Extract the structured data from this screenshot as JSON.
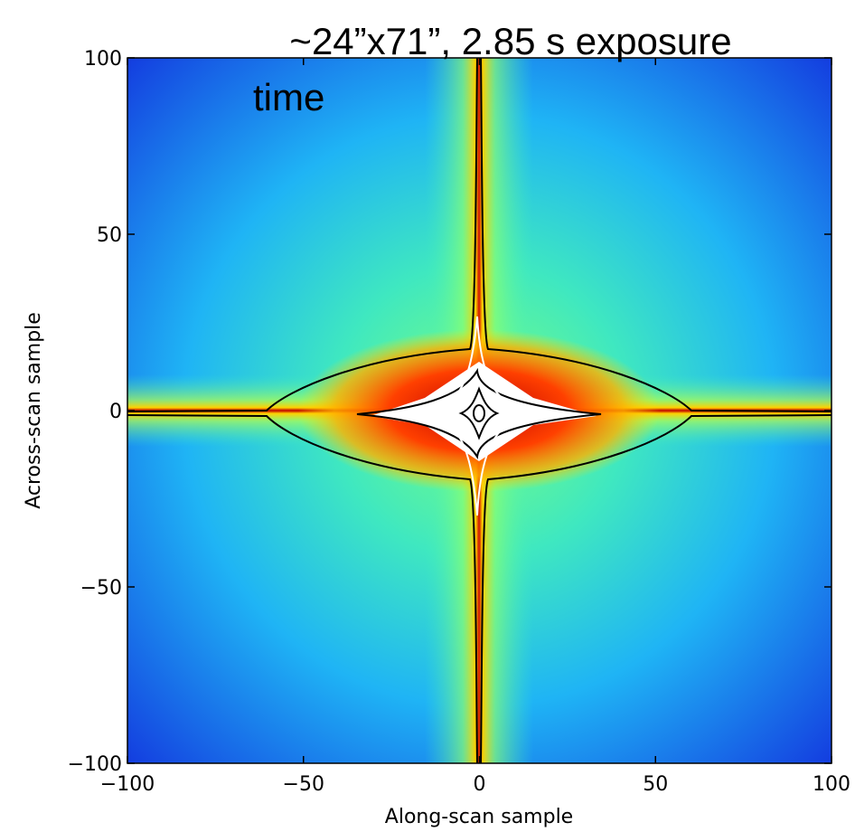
{
  "chart_data": {
    "type": "heatmap",
    "title": "~24”x71”, 2.85 s exposure",
    "annotation": "time",
    "x_label": "Along-scan sample",
    "y_label": "Across-scan sample",
    "xlim": [
      -100,
      100
    ],
    "ylim": [
      -100,
      100
    ],
    "xticks": [
      {
        "value": -100,
        "label": "−100"
      },
      {
        "value": -50,
        "label": "−50"
      },
      0,
      50,
      100
    ],
    "yticks": [
      {
        "value": -100,
        "label": "−100"
      },
      {
        "value": -50,
        "label": "−50"
      },
      0,
      50,
      100
    ]
  }
}
